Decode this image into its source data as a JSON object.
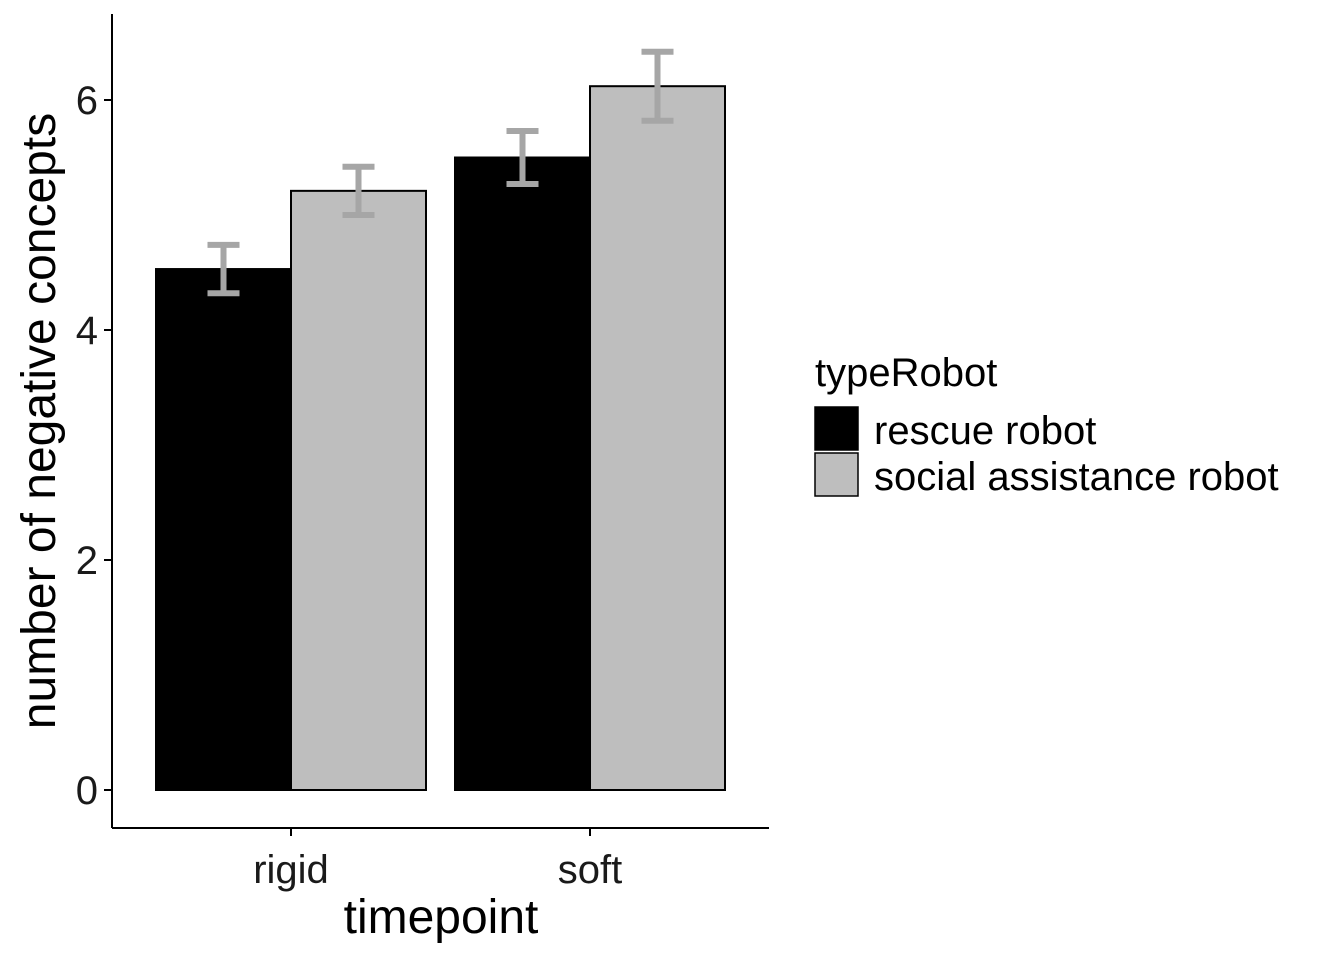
{
  "chart_data": {
    "type": "bar",
    "categories": [
      "rigid",
      "soft"
    ],
    "series": [
      {
        "name": "rescue robot",
        "color": "#000000",
        "values": [
          4.53,
          5.5
        ],
        "error": [
          [
            4.32,
            4.74
          ],
          [
            5.27,
            5.73
          ]
        ]
      },
      {
        "name": "social assistance robot",
        "color": "#bebebe",
        "values": [
          5.21,
          6.12
        ],
        "error": [
          [
            5.0,
            5.42
          ],
          [
            5.82,
            6.42
          ]
        ]
      }
    ],
    "error_bar_color": "#a6a6a6",
    "xlabel": "timepoint",
    "ylabel": "number of negative concepts",
    "yticks": [
      0,
      2,
      4,
      6
    ],
    "ylim": [
      -0.32,
      6.75
    ],
    "legend_title": "typeRobot",
    "legend_position": "right",
    "grid": false
  }
}
